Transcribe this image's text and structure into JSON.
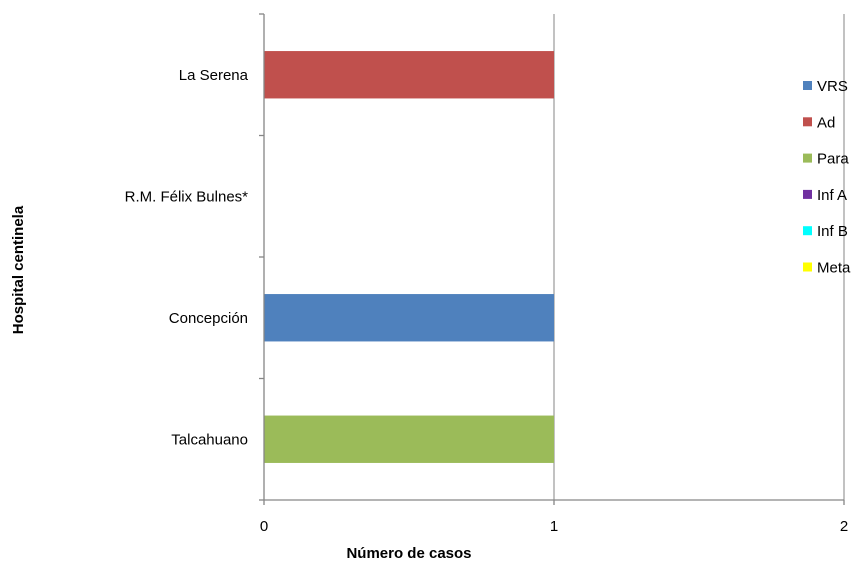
{
  "chart_data": {
    "type": "bar",
    "orientation": "horizontal",
    "stacked": true,
    "categories": [
      "La Serena",
      "R.M. Félix Bulnes*",
      "Concepción",
      "Talcahuano"
    ],
    "series": [
      {
        "name": "VRS",
        "color": "#4F81BD",
        "values": [
          0,
          0,
          1,
          0
        ]
      },
      {
        "name": "Ad",
        "color": "#C0504D",
        "values": [
          1,
          0,
          0,
          0
        ]
      },
      {
        "name": "Para",
        "color": "#9BBB59",
        "values": [
          0,
          0,
          0,
          1
        ]
      },
      {
        "name": "Inf A",
        "color": "#7030A0",
        "values": [
          0,
          0,
          0,
          0
        ]
      },
      {
        "name": "Inf B",
        "color": "#00FFFF",
        "values": [
          0,
          0,
          0,
          0
        ]
      },
      {
        "name": "Meta",
        "color": "#FFFF00",
        "values": [
          0,
          0,
          0,
          0
        ]
      }
    ],
    "title": "",
    "xlabel": "Número de casos",
    "ylabel": "Hospital centinela",
    "xlim": [
      0,
      2
    ],
    "xticks": [
      0,
      1,
      2
    ],
    "grid": "vertical major gridlines",
    "legend": "right"
  }
}
